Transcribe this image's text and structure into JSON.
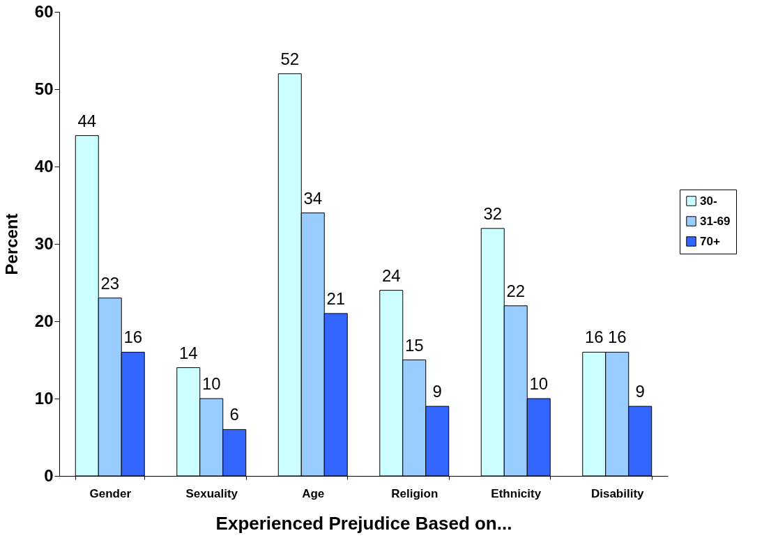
{
  "chart_data": {
    "type": "bar",
    "xlabel": "Experienced Prejudice Based on...",
    "ylabel": "Percent",
    "categories": [
      "Gender",
      "Sexuality",
      "Age",
      "Religion",
      "Ethnicity",
      "Disability"
    ],
    "series": [
      {
        "name": "30-",
        "color": "#ccffff",
        "values": [
          44,
          14,
          52,
          24,
          32,
          16
        ]
      },
      {
        "name": "31-69",
        "color": "#99ccff",
        "values": [
          23,
          10,
          34,
          15,
          22,
          16
        ]
      },
      {
        "name": "70+",
        "color": "#3366ff",
        "values": [
          16,
          6,
          21,
          9,
          10,
          9
        ]
      }
    ],
    "ylim": [
      0,
      60
    ],
    "yticks": [
      0,
      10,
      20,
      30,
      40,
      50,
      60
    ],
    "grid": false,
    "legend": "right",
    "data_labels": true
  }
}
